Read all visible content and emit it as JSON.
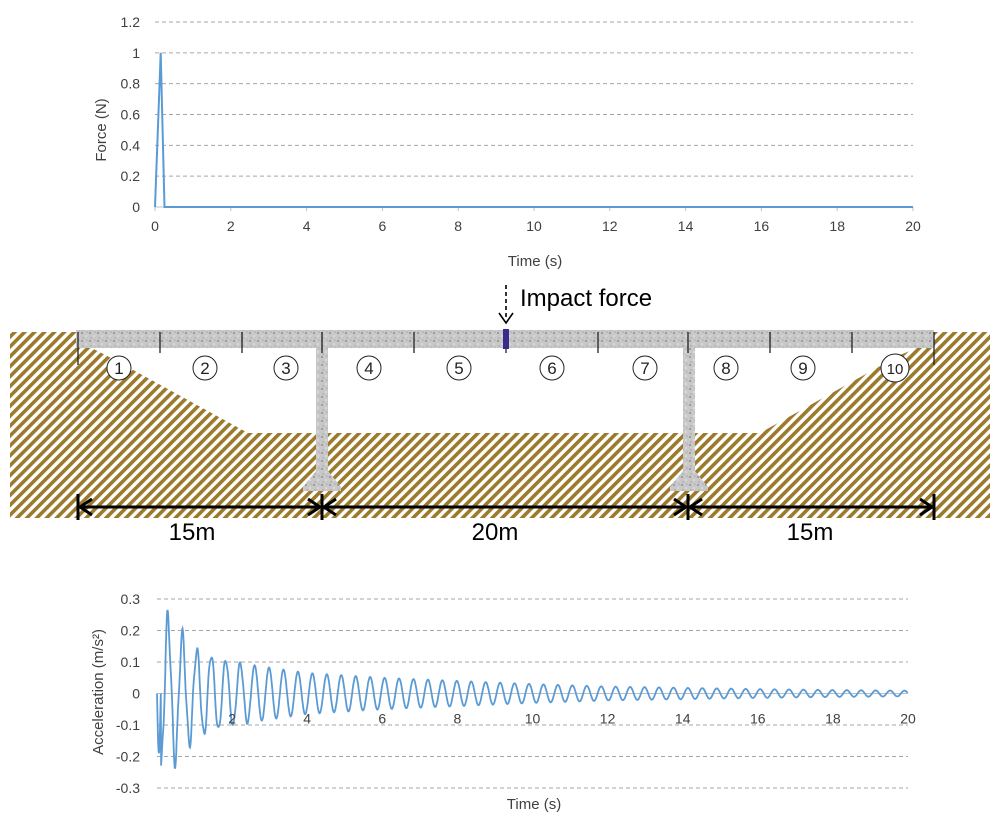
{
  "colors": {
    "series": "#5b9bd5",
    "grid": "#a6a6a6",
    "axis": "#bfbfbf",
    "text": "#404040",
    "soil_stripe": "#9b7a2c",
    "deck": "#c6c6c6",
    "impact_marker": "#3b2a8c"
  },
  "chart_data": [
    {
      "type": "line",
      "xlabel": "Time (s)",
      "ylabel": "Force (N)",
      "xlim": [
        0,
        20
      ],
      "ylim": [
        0,
        1.2
      ],
      "xticks": [
        "0",
        "2",
        "4",
        "6",
        "8",
        "10",
        "12",
        "14",
        "16",
        "18",
        "20"
      ],
      "yticks": [
        "0",
        "0.2",
        "0.4",
        "0.6",
        "0.8",
        "1",
        "1.2"
      ],
      "grid": "horizontal dashed",
      "series": [
        {
          "x": [
            0,
            0.15,
            0.25,
            20
          ],
          "y": [
            0,
            1,
            0,
            0
          ]
        }
      ]
    },
    {
      "type": "line",
      "xlabel": "Time (s)",
      "ylabel": "Acceleration (m/s²)",
      "xlim": [
        0,
        20
      ],
      "ylim": [
        -0.3,
        0.3
      ],
      "xticks": [
        "2",
        "4",
        "6",
        "8",
        "10",
        "12",
        "14",
        "16",
        "18",
        "20"
      ],
      "yticks": [
        "-0.3",
        "-0.2",
        "-0.1",
        "0",
        "0.1",
        "0.2",
        "0.3"
      ],
      "grid": "horizontal dashed",
      "series": [
        {
          "signal": "decaying oscillation",
          "peak_max": 0.25,
          "peak_min": -0.23,
          "dominant_frequency_hz": 2.6,
          "amplitude_at_t": [
            [
              0.2,
              0.25
            ],
            [
              1,
              0.14
            ],
            [
              2,
              0.1
            ],
            [
              4,
              0.065
            ],
            [
              6,
              0.05
            ],
            [
              8,
              0.04
            ],
            [
              10,
              0.03
            ],
            [
              12,
              0.022
            ],
            [
              14,
              0.018
            ],
            [
              16,
              0.014
            ],
            [
              18,
              0.011
            ],
            [
              20,
              0.009
            ]
          ]
        }
      ]
    }
  ],
  "bridge": {
    "impact_label": "Impact force",
    "segments": [
      "1",
      "2",
      "3",
      "4",
      "5",
      "6",
      "7",
      "8",
      "9",
      "10"
    ],
    "spans": [
      "15m",
      "20m",
      "15m"
    ]
  }
}
